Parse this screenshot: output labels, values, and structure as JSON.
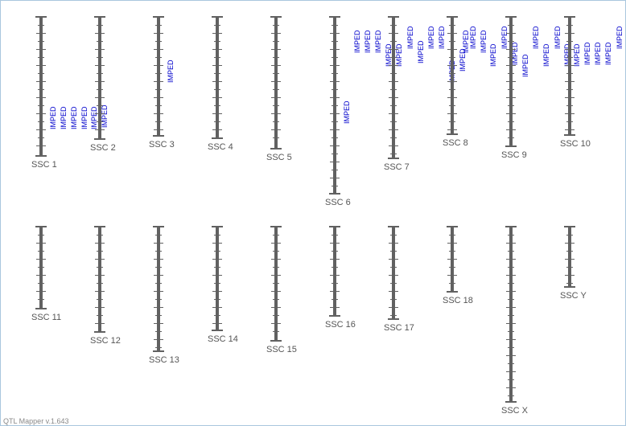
{
  "app": {
    "version_label": "QTL Mapper v.1.643"
  },
  "colors": {
    "chromosome": "#616161",
    "qtl_label": "#0000cc",
    "chromosome_label": "#555555",
    "border": "#a9c7de"
  },
  "chromosomes": [
    {
      "id": "ssc1",
      "name": "SSC 1",
      "qtl": [
        "IMPED",
        "IMPED",
        "IMPED",
        "IMPED",
        "IMPED",
        "IMPED"
      ]
    },
    {
      "id": "ssc2",
      "name": "SSC 2",
      "qtl": []
    },
    {
      "id": "ssc3",
      "name": "SSC 3",
      "qtl": [
        "IMPED"
      ]
    },
    {
      "id": "ssc4",
      "name": "SSC 4",
      "qtl": []
    },
    {
      "id": "ssc5",
      "name": "SSC 5",
      "qtl": []
    },
    {
      "id": "ssc6",
      "name": "SSC 6",
      "qtl": [
        "IMPED",
        "IMPED",
        "IMPED",
        "IMPED",
        "IMPED",
        "IMPED"
      ]
    },
    {
      "id": "ssc7",
      "name": "SSC 7",
      "qtl": [
        "IMPED",
        "IMPED",
        "IMPED",
        "IMPED",
        "IMPED",
        "IMPED",
        "IMPED"
      ]
    },
    {
      "id": "ssc8",
      "name": "SSC 8",
      "qtl": [
        "IMPED",
        "IMPED",
        "IMPED",
        "IMPED",
        "IMPED",
        "IMPED"
      ]
    },
    {
      "id": "ssc9",
      "name": "SSC 9",
      "qtl": [
        "IMPED",
        "IMPED",
        "IMPED",
        "IMPED",
        "IMPED",
        "IMPED"
      ]
    },
    {
      "id": "ssc10",
      "name": "SSC 10",
      "qtl": [
        "IMPED",
        "IMPED",
        "IMPED",
        "IMPED",
        "IMPED",
        "IMPED",
        "IMPED"
      ]
    },
    {
      "id": "ssc11",
      "name": "SSC 11",
      "qtl": []
    },
    {
      "id": "ssc12",
      "name": "SSC 12",
      "qtl": []
    },
    {
      "id": "ssc13",
      "name": "SSC 13",
      "qtl": []
    },
    {
      "id": "ssc14",
      "name": "SSC 14",
      "qtl": []
    },
    {
      "id": "ssc15",
      "name": "SSC 15",
      "qtl": []
    },
    {
      "id": "ssc16",
      "name": "SSC 16",
      "qtl": []
    },
    {
      "id": "ssc17",
      "name": "SSC 17",
      "qtl": []
    },
    {
      "id": "ssc18",
      "name": "SSC 18",
      "qtl": []
    },
    {
      "id": "sscx",
      "name": "SSC X",
      "qtl": []
    },
    {
      "id": "sscy",
      "name": "SSC Y",
      "qtl": []
    }
  ]
}
